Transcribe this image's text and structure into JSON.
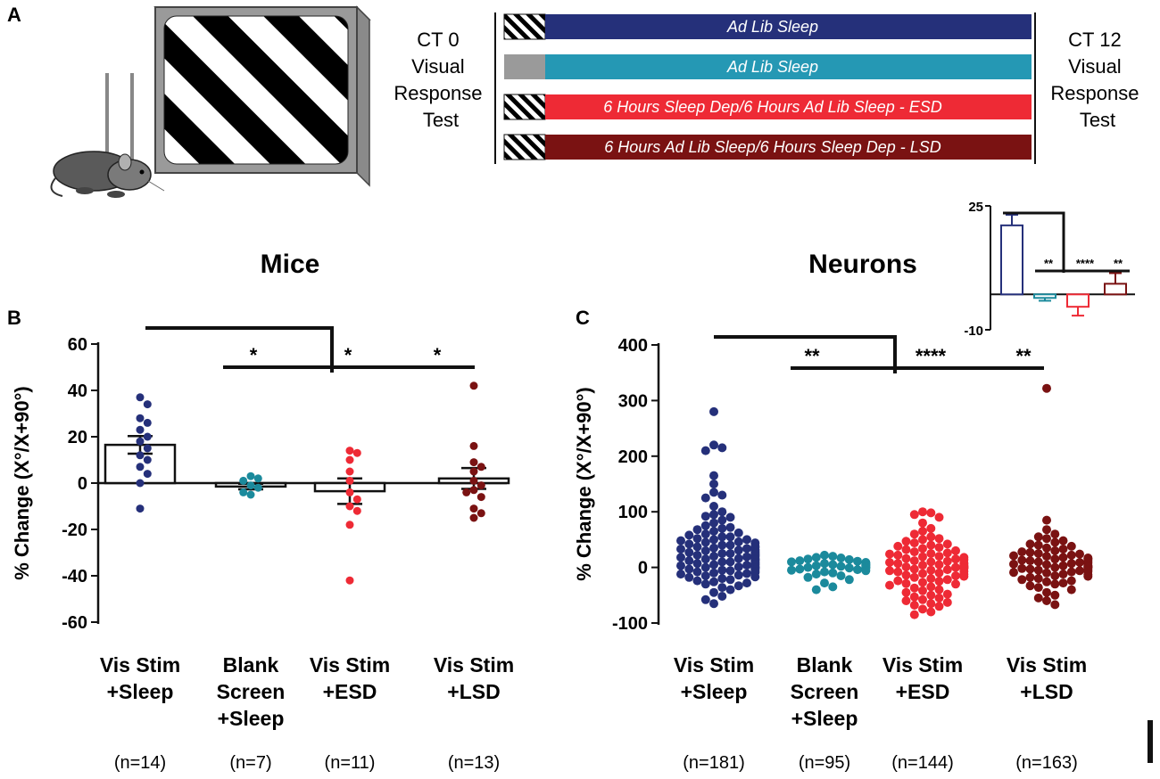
{
  "panel_labels": {
    "a": "A",
    "b": "B",
    "c": "C"
  },
  "protocol": {
    "left_label": [
      "CT 0",
      "Visual",
      "Response",
      "Test"
    ],
    "right_label": [
      "CT 12",
      "Visual",
      "Response",
      "Test"
    ],
    "rows": [
      {
        "text": "Ad Lib Sleep",
        "color": "#25307a",
        "start": "stripes"
      },
      {
        "text": "Ad Lib Sleep",
        "color": "#2598b4",
        "start": "gray"
      },
      {
        "text": "6 Hours Sleep Dep/6 Hours Ad Lib Sleep - ESD",
        "color": "#ee2a35",
        "start": "stripes"
      },
      {
        "text": "6 Hours Ad Lib Sleep/6 Hours Sleep Dep - LSD",
        "color": "#7a1212",
        "start": "stripes"
      }
    ]
  },
  "colors": {
    "sleep": "#25307a",
    "blank": "#1b8a9c",
    "esd": "#ee2a35",
    "lsd": "#7a1212",
    "axis": "#111111"
  },
  "chart_data": [
    {
      "id": "mice",
      "type": "scatter",
      "title": "Mice",
      "ylabel": "% Change (X°/X+90°)",
      "ylim": [
        -60,
        60
      ],
      "yticks": [
        -60,
        -40,
        -20,
        0,
        20,
        40,
        60
      ],
      "categories": [
        [
          "Vis Stim",
          "+Sleep"
        ],
        [
          "Blank",
          "Screen",
          "+Sleep"
        ],
        [
          "Vis Stim",
          "+ESD"
        ],
        [
          "Vis Stim",
          "+LSD"
        ]
      ],
      "n_labels": [
        "(n=14)",
        "(n=7)",
        "(n=11)",
        "(n=13)"
      ],
      "means": [
        16.5,
        -1.5,
        -3.5,
        2
      ],
      "sems": [
        3.8,
        1.2,
        5.5,
        4.5
      ],
      "points": [
        [
          37,
          34,
          28,
          26,
          23,
          20,
          18,
          15,
          12,
          10,
          7,
          4,
          0,
          -11
        ],
        [
          3,
          2,
          1,
          -1,
          -2,
          -4,
          -5
        ],
        [
          14,
          13,
          10,
          5,
          1,
          -4,
          -7,
          -10,
          -12,
          -18,
          -42
        ],
        [
          42,
          16,
          9,
          7,
          5,
          1,
          -1,
          -3,
          -4,
          -6,
          -11,
          -13,
          -15
        ]
      ],
      "significance": [
        "*",
        "*",
        "*"
      ]
    },
    {
      "id": "neurons",
      "type": "scatter",
      "title": "Neurons",
      "ylabel": "% Change (X°/X+90°)",
      "ylim": [
        -100,
        400
      ],
      "yticks": [
        -100,
        0,
        100,
        200,
        300,
        400
      ],
      "categories": [
        [
          "Vis Stim",
          "+Sleep"
        ],
        [
          "Blank",
          "Screen",
          "+Sleep"
        ],
        [
          "Vis Stim",
          "+ESD"
        ],
        [
          "Vis Stim",
          "+LSD"
        ]
      ],
      "n_labels": [
        "(n=181)",
        "(n=95)",
        "(n=144)",
        "(n=163)"
      ],
      "points": [
        [
          280,
          220,
          215,
          210,
          165,
          150,
          135,
          130,
          125,
          110,
          100,
          95,
          92,
          90,
          85,
          80,
          75,
          72,
          70,
          68,
          65,
          62,
          60,
          58,
          55,
          55,
          52,
          50,
          50,
          48,
          46,
          45,
          44,
          42,
          40,
          40,
          38,
          37,
          36,
          35,
          34,
          33,
          32,
          31,
          30,
          30,
          28,
          27,
          26,
          25,
          25,
          24,
          23,
          22,
          21,
          20,
          20,
          19,
          18,
          17,
          16,
          15,
          15,
          14,
          13,
          12,
          11,
          10,
          10,
          9,
          8,
          7,
          6,
          5,
          5,
          4,
          3,
          2,
          1,
          0,
          0,
          -1,
          -2,
          -3,
          -4,
          -5,
          -6,
          -7,
          -8,
          -9,
          -10,
          -11,
          -12,
          -14,
          -15,
          -17,
          -18,
          -20,
          -22,
          -24,
          -26,
          -28,
          -30,
          -33,
          -36,
          -40,
          -45,
          -52,
          -58,
          -65
        ],
        [
          22,
          20,
          18,
          17,
          15,
          14,
          12,
          11,
          10,
          9,
          8,
          7,
          6,
          5,
          5,
          4,
          3,
          2,
          1,
          0,
          0,
          -1,
          -2,
          -3,
          -4,
          -5,
          -6,
          -8,
          -10,
          -12,
          -15,
          -18,
          -22,
          -28,
          -35,
          -40
        ],
        [
          100,
          98,
          95,
          90,
          80,
          70,
          65,
          60,
          55,
          52,
          50,
          47,
          44,
          42,
          40,
          38,
          36,
          34,
          32,
          30,
          28,
          26,
          25,
          24,
          22,
          20,
          19,
          18,
          16,
          15,
          14,
          12,
          11,
          10,
          9,
          8,
          7,
          6,
          5,
          4,
          3,
          2,
          1,
          0,
          0,
          -1,
          -2,
          -3,
          -4,
          -5,
          -6,
          -7,
          -8,
          -10,
          -11,
          -12,
          -14,
          -15,
          -16,
          -18,
          -20,
          -22,
          -24,
          -25,
          -27,
          -29,
          -30,
          -32,
          -35,
          -37,
          -40,
          -42,
          -45,
          -48,
          -50,
          -53,
          -55,
          -58,
          -60,
          -63,
          -65,
          -68,
          -70,
          -75,
          -80,
          -85
        ],
        [
          322,
          85,
          68,
          60,
          55,
          52,
          48,
          45,
          42,
          40,
          38,
          35,
          33,
          30,
          28,
          27,
          25,
          24,
          22,
          21,
          20,
          18,
          17,
          16,
          15,
          14,
          13,
          12,
          11,
          10,
          9,
          8,
          7,
          6,
          5,
          4,
          3,
          2,
          1,
          0,
          0,
          -1,
          -2,
          -3,
          -4,
          -5,
          -6,
          -7,
          -8,
          -9,
          -10,
          -12,
          -13,
          -15,
          -16,
          -18,
          -20,
          -22,
          -24,
          -26,
          -28,
          -30,
          -33,
          -36,
          -40,
          -45,
          -50,
          -55,
          -60,
          -67
        ]
      ],
      "significance": [
        "**",
        "****",
        "**"
      ]
    },
    {
      "id": "inset",
      "type": "bar",
      "ylim": [
        -10,
        25
      ],
      "yticks": [
        -10,
        25
      ],
      "values": [
        19.5,
        -1,
        -3.5,
        3
      ],
      "errors": [
        3,
        0.8,
        2.5,
        3
      ],
      "significance": [
        "**",
        "****",
        "**"
      ]
    }
  ]
}
